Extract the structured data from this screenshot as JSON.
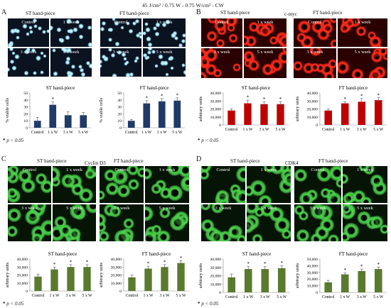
{
  "figure_title": "45 J/cm² / 0.75 W - 0.75 W/cm² - CW",
  "panels": {
    "A": {
      "letter": "A",
      "left_header": "ST hand-piece",
      "right_header": "FT hand-piece",
      "image_labels": [
        "Control",
        "1 x week",
        "3 x week",
        "5 x week"
      ],
      "stat_note": "p < 0.05",
      "star": "*"
    },
    "B": {
      "letter": "B",
      "left_header": "ST hand-piece",
      "marker": "c-myc",
      "right_header": "FT hand-piece",
      "image_labels": [
        "Control",
        "1 x week",
        "3 x week",
        "5 x week"
      ],
      "stat_note": "p < 0.05",
      "star": "*"
    },
    "C": {
      "letter": "C",
      "left_header": "ST hand-piece",
      "marker": "Cyclin D3",
      "right_header": "FT hand-piece",
      "image_labels": [
        "Control",
        "1 x week",
        "3 x week",
        "5 x week"
      ],
      "stat_note": "p < 0.05",
      "star": "*"
    },
    "D": {
      "letter": "D",
      "left_header": "ST hand-piece",
      "marker": "CDK4",
      "right_header": "FT hand-piece",
      "image_labels": [
        "Control",
        "1 x week",
        "3 x week",
        "5 x week"
      ],
      "stat_note": "p < 0.05",
      "star": "*"
    }
  },
  "colors": {
    "dapi_bg": "#0b1220",
    "dapi_cell": "#9fe9ff",
    "red_bg": "#2a0000",
    "red_cell": "#ff2a1a",
    "green_bg": "#061406",
    "green_cell": "#4bd04b",
    "bar_blue": "#1f3a68",
    "bar_red": "#c00000",
    "bar_green": "#5a7a2e"
  },
  "chart_data": [
    {
      "id": "A-ST",
      "type": "bar",
      "title": "ST hand-piece",
      "ylabel": "% viable cells",
      "categories": [
        "Control",
        "1 x W",
        "3 x W",
        "5 x W"
      ],
      "values": [
        10,
        33,
        18,
        18
      ],
      "errors": [
        5,
        4,
        5,
        4
      ],
      "significant": [
        false,
        true,
        false,
        false
      ],
      "ylim": [
        0,
        50
      ],
      "yticks": [
        0,
        10,
        20,
        30,
        40,
        50
      ],
      "ytick_labels": [
        "0",
        "10",
        "20",
        "30",
        "40",
        "50"
      ]
    },
    {
      "id": "A-FT",
      "type": "bar",
      "title": "FT hand-piece",
      "ylabel": "% viable cells",
      "categories": [
        "Control",
        "1 x W",
        "3 x W",
        "5 x W"
      ],
      "values": [
        10,
        35,
        38,
        39
      ],
      "errors": [
        2,
        4,
        4,
        4
      ],
      "significant": [
        false,
        true,
        true,
        true
      ],
      "ylim": [
        0,
        50
      ],
      "yticks": [
        0,
        10,
        20,
        30,
        40,
        50
      ],
      "ytick_labels": [
        "0",
        "10",
        "20",
        "30",
        "40",
        "50"
      ]
    },
    {
      "id": "B-ST",
      "type": "bar",
      "title": "ST hand-piece",
      "ylabel": "arbitrary units",
      "categories": [
        "Control",
        "1 x W",
        "3 x W",
        "5 x W"
      ],
      "values": [
        18000,
        27000,
        26000,
        26000
      ],
      "errors": [
        2000,
        4000,
        3000,
        3000
      ],
      "significant": [
        false,
        true,
        true,
        true
      ],
      "ylim": [
        0,
        40000
      ],
      "yticks": [
        0,
        10000,
        20000,
        30000,
        40000
      ],
      "ytick_labels": [
        "0",
        "10,000",
        "20,000",
        "30,000",
        "40,000"
      ]
    },
    {
      "id": "B-FT",
      "type": "bar",
      "title": "FT hand-piece",
      "ylabel": "arbitrary units",
      "categories": [
        "Control",
        "1 x W",
        "3 x W",
        "5 x W"
      ],
      "values": [
        18000,
        27000,
        29000,
        31000
      ],
      "errors": [
        2000,
        2000,
        4000,
        3000
      ],
      "significant": [
        false,
        true,
        true,
        true
      ],
      "ylim": [
        0,
        40000
      ],
      "yticks": [
        0,
        10000,
        20000,
        30000,
        40000
      ],
      "ytick_labels": [
        "0",
        "10,000",
        "20,000",
        "30,000",
        "40,000"
      ]
    },
    {
      "id": "C-ST",
      "type": "bar",
      "title": "ST hand-piece",
      "ylabel": "arbitrary units",
      "categories": [
        "Control",
        "1 x W",
        "3 x W",
        "5 x W"
      ],
      "values": [
        18000,
        27000,
        30000,
        30000
      ],
      "errors": [
        3000,
        3000,
        3000,
        3000
      ],
      "significant": [
        false,
        true,
        true,
        true
      ],
      "ylim": [
        0,
        40000
      ],
      "yticks": [
        0,
        10000,
        20000,
        30000,
        40000
      ],
      "ytick_labels": [
        "0",
        "10,000",
        "20,000",
        "30,000",
        "40,000"
      ]
    },
    {
      "id": "C-FT",
      "type": "bar",
      "title": "FT hand-piece",
      "ylabel": "arbitrary units",
      "categories": [
        "Control",
        "1 x W",
        "3 x W",
        "5 x W"
      ],
      "values": [
        17000,
        28000,
        30000,
        35000
      ],
      "errors": [
        3000,
        3000,
        3000,
        3000
      ],
      "significant": [
        false,
        true,
        true,
        true
      ],
      "ylim": [
        0,
        40000
      ],
      "yticks": [
        0,
        10000,
        20000,
        30000,
        40000
      ],
      "ytick_labels": [
        "0",
        "10,000",
        "20,000",
        "30,000",
        "40,000"
      ]
    },
    {
      "id": "D-ST",
      "type": "bar",
      "title": "ST hand-piece",
      "ylabel": "arbitrary units",
      "categories": [
        "Control",
        "1 x W",
        "3 x W",
        "5 x W"
      ],
      "values": [
        18000,
        28000,
        28000,
        29000
      ],
      "errors": [
        4000,
        3000,
        3000,
        3000
      ],
      "significant": [
        false,
        true,
        true,
        true
      ],
      "ylim": [
        0,
        40000
      ],
      "yticks": [
        0,
        10000,
        20000,
        30000,
        40000
      ],
      "ytick_labels": [
        "0",
        "10,000",
        "20,000",
        "30,000",
        "40,000"
      ]
    },
    {
      "id": "D-FT",
      "type": "bar",
      "title": "FT hand-piece",
      "ylabel": "arbitrary units",
      "categories": [
        "Control",
        "1 x W",
        "3 x W",
        "5 x W"
      ],
      "values": [
        15000,
        27000,
        32000,
        35000
      ],
      "errors": [
        3000,
        2000,
        3000,
        3000
      ],
      "significant": [
        false,
        true,
        true,
        true
      ],
      "ylim": [
        0,
        50000
      ],
      "yticks": [
        0,
        10000,
        20000,
        30000,
        40000,
        50000
      ],
      "ytick_labels": [
        "0",
        "10,000",
        "20,000",
        "30,000",
        "40,000",
        "50,000"
      ]
    }
  ]
}
